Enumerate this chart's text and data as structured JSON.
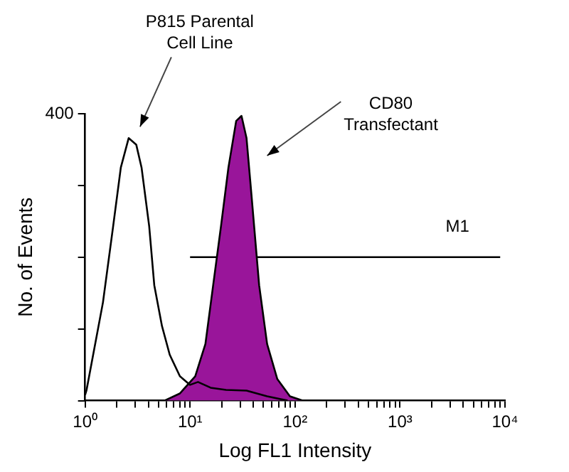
{
  "chart_data": {
    "type": "line",
    "xlabel": "Log FL1 Intensity",
    "ylabel": "No. of Events",
    "log": "x",
    "xlim": [
      1,
      10000
    ],
    "xticks": [
      {
        "value": 1,
        "label": "10⁰"
      },
      {
        "value": 2,
        "label": null
      },
      {
        "value": 3,
        "label": null
      },
      {
        "value": 4,
        "label": null
      },
      {
        "value": 5,
        "label": null
      },
      {
        "value": 6,
        "label": null
      },
      {
        "value": 7,
        "label": null
      },
      {
        "value": 8,
        "label": null
      },
      {
        "value": 9,
        "label": null
      },
      {
        "value": 10,
        "label": "10¹"
      },
      {
        "value": 20,
        "label": null
      },
      {
        "value": 30,
        "label": null
      },
      {
        "value": 40,
        "label": null
      },
      {
        "value": 50,
        "label": null
      },
      {
        "value": 60,
        "label": null
      },
      {
        "value": 70,
        "label": null
      },
      {
        "value": 80,
        "label": null
      },
      {
        "value": 90,
        "label": null
      },
      {
        "value": 100,
        "label": "10²"
      },
      {
        "value": 200,
        "label": null
      },
      {
        "value": 300,
        "label": null
      },
      {
        "value": 400,
        "label": null
      },
      {
        "value": 500,
        "label": null
      },
      {
        "value": 600,
        "label": null
      },
      {
        "value": 700,
        "label": null
      },
      {
        "value": 800,
        "label": null
      },
      {
        "value": 900,
        "label": null
      },
      {
        "value": 1000,
        "label": "10³"
      },
      {
        "value": 2000,
        "label": null
      },
      {
        "value": 3000,
        "label": null
      },
      {
        "value": 4000,
        "label": null
      },
      {
        "value": 5000,
        "label": null
      },
      {
        "value": 6000,
        "label": null
      },
      {
        "value": 7000,
        "label": null
      },
      {
        "value": 8000,
        "label": null
      },
      {
        "value": 9000,
        "label": null
      },
      {
        "value": 10000,
        "label": "10⁴"
      }
    ],
    "ylim": [
      0,
      400
    ],
    "yticks": [
      0,
      {
        "value": 100,
        "label": null
      },
      {
        "value": 200,
        "label": null
      },
      {
        "value": 300,
        "label": null
      },
      400
    ],
    "grid": false,
    "legend": false,
    "marker": "none",
    "series": [
      {
        "name": "P815 Parental Cell Line",
        "type": "line",
        "color": "#000000",
        "x": [
          1,
          1.03,
          1.48,
          1.85,
          2.19,
          2.6,
          3.07,
          3.45,
          4.08,
          4.56,
          5.4,
          6.4,
          8.0,
          10.0,
          11.9,
          15.7,
          22.0,
          34.5,
          54.2,
          85
        ],
        "values": [
          8,
          14,
          137,
          243,
          325,
          366,
          357,
          325,
          243,
          161,
          104,
          64,
          34,
          22,
          26,
          18,
          15,
          14,
          6,
          0
        ]
      },
      {
        "name": "CD80 Transfectant",
        "type": "area",
        "color": "#99159a",
        "x": [
          5.7,
          8.0,
          11.2,
          14.0,
          16.6,
          19.7,
          23.2,
          27.5,
          30.9,
          34.5,
          38.6,
          45.5,
          54.2,
          67.8,
          89.4,
          118
        ],
        "values": [
          0,
          10,
          34,
          79,
          161,
          243,
          325,
          390,
          397,
          366,
          284,
          161,
          79,
          30,
          6,
          0
        ]
      },
      {
        "name": "M1",
        "type": "line",
        "color": "#000000",
        "x": [
          10,
          9000
        ],
        "values": [
          200,
          200
        ]
      }
    ]
  }
}
